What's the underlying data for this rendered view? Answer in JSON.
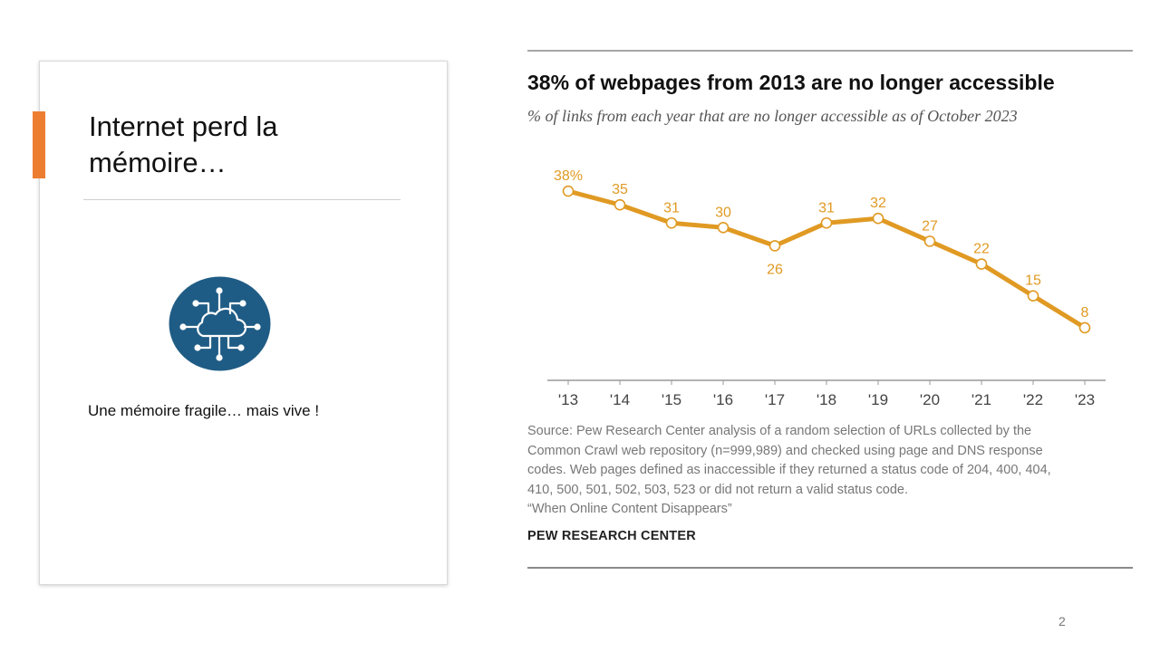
{
  "slide": {
    "title": "Internet perd la mémoire…",
    "caption": "Une mémoire fragile… mais vive !",
    "page_number": "2",
    "accent_color": "#ED7D31",
    "icon": "cloud-network-icon",
    "icon_color": "#1F5C85"
  },
  "figure": {
    "title": "38% of webpages from 2013 are no longer accessible",
    "subtitle": "% of links from each year that are no longer accessible as of October 2023",
    "source_lines": [
      "Source: Pew Research Center analysis of a random selection of URLs collected by the",
      "Common Crawl web repository (n=999,989) and checked using page and DNS response",
      "codes. Web pages defined as inaccessible if they returned a status code of 204, 400, 404,",
      "410, 500, 501, 502, 503, 523 or did not return a valid status code.",
      "“When Online Content Disappears”"
    ],
    "org": "PEW RESEARCH CENTER"
  },
  "chart_data": {
    "type": "line",
    "title": "38% of webpages from 2013 are no longer accessible",
    "subtitle": "% of links from each year that are no longer accessible as of October 2023",
    "categories": [
      "'13",
      "'14",
      "'15",
      "'16",
      "'17",
      "'18",
      "'19",
      "'20",
      "'21",
      "'22",
      "'23"
    ],
    "values": [
      38,
      35,
      31,
      30,
      26,
      31,
      32,
      27,
      22,
      15,
      8
    ],
    "data_labels": [
      "38%",
      "35",
      "31",
      "30",
      "26",
      "31",
      "32",
      "27",
      "22",
      "15",
      "8"
    ],
    "label_position": [
      "above",
      "above",
      "above",
      "above",
      "below",
      "above",
      "above",
      "above",
      "above",
      "above",
      "above"
    ],
    "ylim": [
      5,
      40
    ],
    "xlabel": "",
    "ylabel": "",
    "grid": false,
    "legend": "none",
    "color": "#E09A23"
  }
}
